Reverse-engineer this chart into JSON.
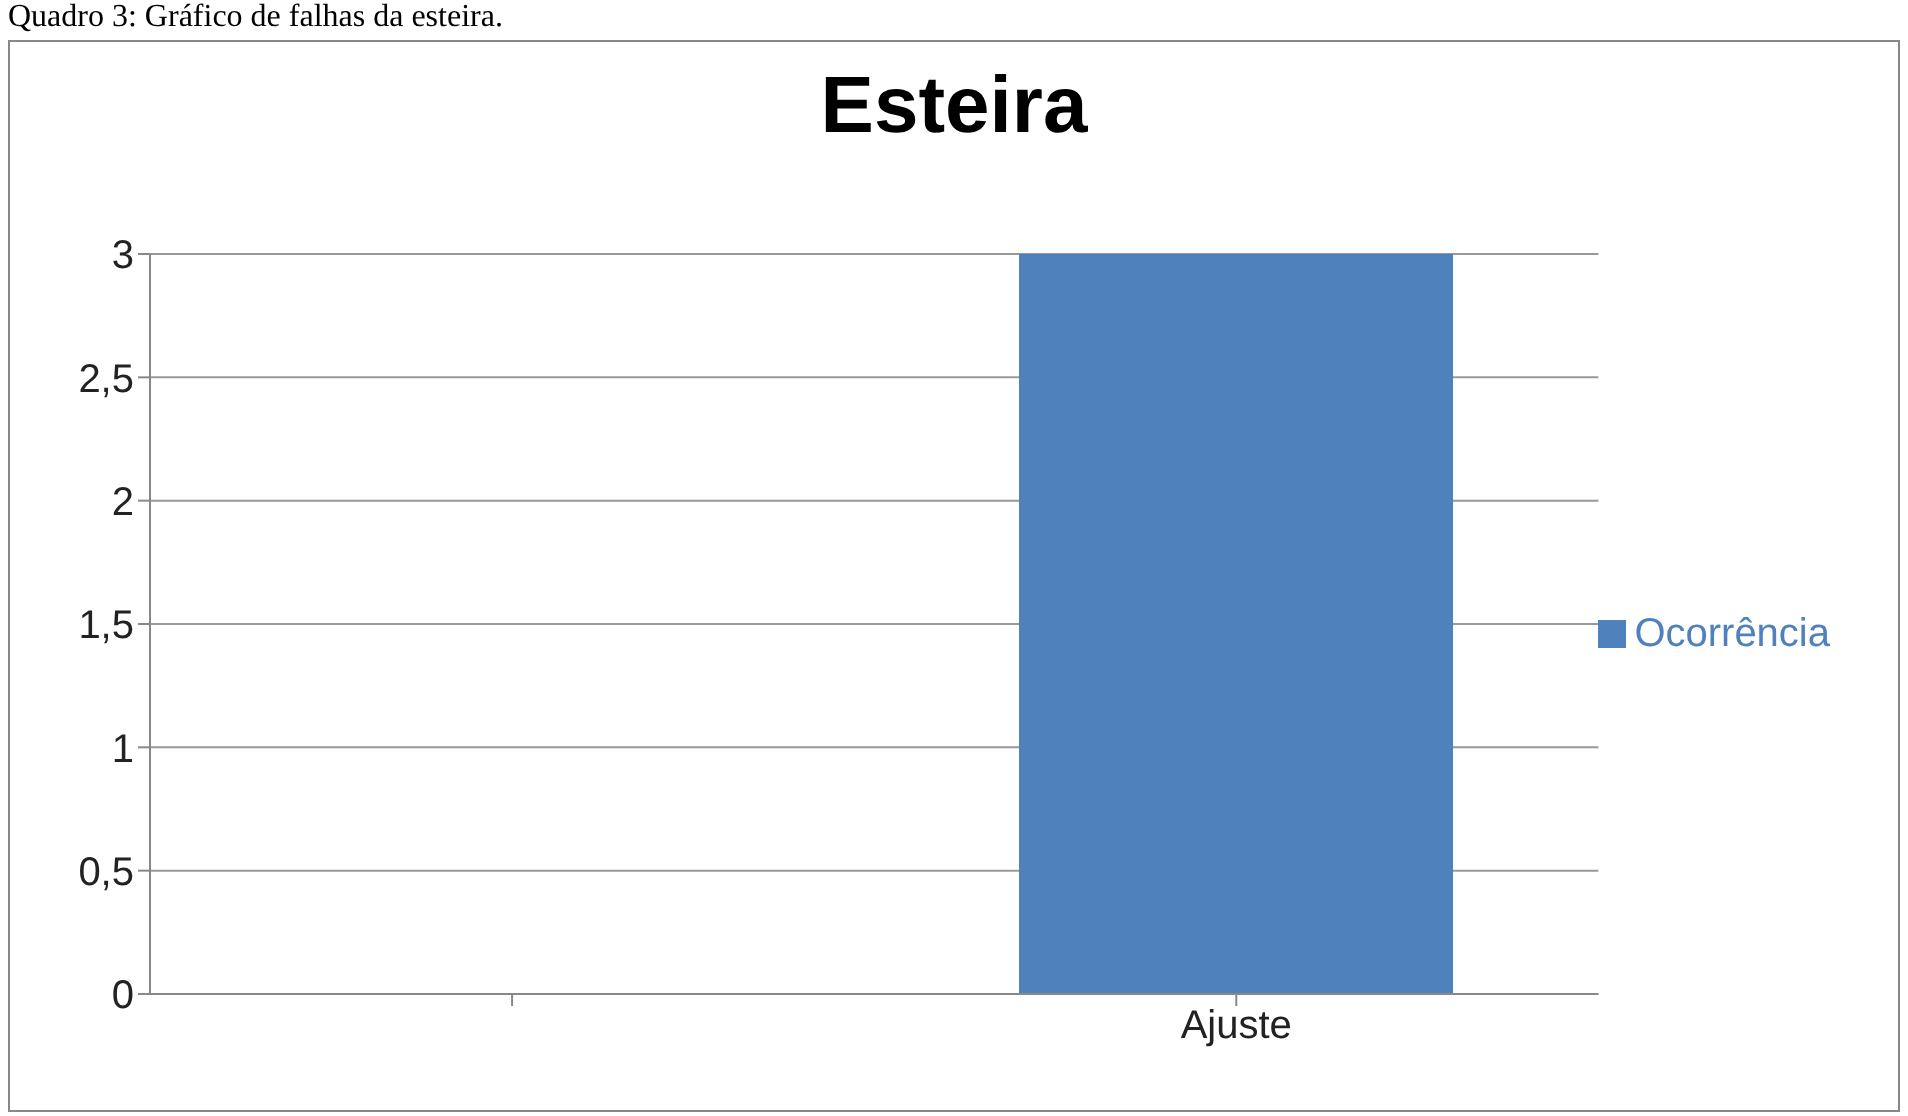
{
  "chart_data": {
    "type": "bar",
    "title": "Esteira",
    "annotations": [
      "Quadro 3: Gráfico de falhas da esteira."
    ],
    "categories": [
      null,
      "Ajuste"
    ],
    "series": [
      {
        "name": "Ocorrência",
        "color": "#4f81bd",
        "values": [
          null,
          3
        ]
      }
    ],
    "ylim": [
      0,
      3
    ],
    "yticks": [
      0,
      {
        "value": 0.5,
        "label": "0,5"
      },
      1,
      {
        "value": 1.5,
        "label": "1,5"
      },
      2,
      {
        "value": 2.5,
        "label": "2,5"
      },
      3
    ],
    "grid": "y",
    "legend": "right"
  }
}
